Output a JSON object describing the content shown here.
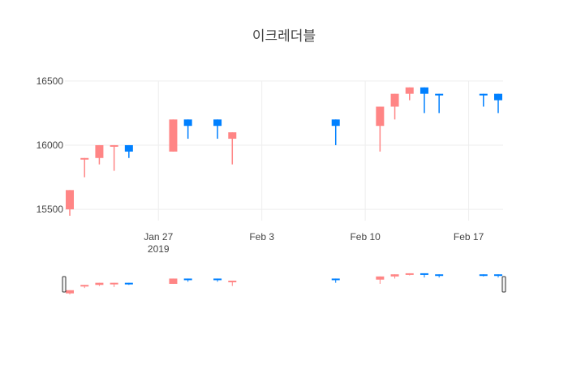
{
  "chart_data": {
    "type": "candlestick",
    "title": "이크레더블",
    "increasing_color": "#ff8585",
    "decreasing_color": "#0080ff",
    "y_ticks": [
      15500,
      16000,
      16500
    ],
    "y_tick_labels": [
      "15500",
      "16000",
      "16500"
    ],
    "x_ticks": [
      "2019-01-27",
      "2019-02-03",
      "2019-02-10",
      "2019-02-17"
    ],
    "x_tick_labels": [
      "Jan 27",
      "Feb 3",
      "Feb 10",
      "Feb 17"
    ],
    "x_tick_sublabel": "2019",
    "xlim": [
      "2019-01-21",
      "2019-02-19"
    ],
    "ylim": [
      15450,
      16600
    ],
    "rangeslider": true,
    "candles": [
      {
        "date": "2019-01-21",
        "open": 15500,
        "high": 15650,
        "low": 15450,
        "close": 15650,
        "direction": "increasing"
      },
      {
        "date": "2019-01-22",
        "open": 15900,
        "high": 15900,
        "low": 15750,
        "close": 15900,
        "direction": "increasing"
      },
      {
        "date": "2019-01-23",
        "open": 15900,
        "high": 16000,
        "low": 15850,
        "close": 16000,
        "direction": "increasing"
      },
      {
        "date": "2019-01-24",
        "open": 16000,
        "high": 16000,
        "low": 15800,
        "close": 16000,
        "direction": "increasing"
      },
      {
        "date": "2019-01-25",
        "open": 16000,
        "high": 16000,
        "low": 15900,
        "close": 15950,
        "direction": "decreasing"
      },
      {
        "date": "2019-01-28",
        "open": 15950,
        "high": 16200,
        "low": 15950,
        "close": 16200,
        "direction": "increasing"
      },
      {
        "date": "2019-01-29",
        "open": 16200,
        "high": 16200,
        "low": 16050,
        "close": 16150,
        "direction": "decreasing"
      },
      {
        "date": "2019-01-31",
        "open": 16200,
        "high": 16200,
        "low": 16050,
        "close": 16150,
        "direction": "decreasing"
      },
      {
        "date": "2019-02-01",
        "open": 16050,
        "high": 16100,
        "low": 15850,
        "close": 16100,
        "direction": "increasing"
      },
      {
        "date": "2019-02-08",
        "open": 16200,
        "high": 16200,
        "low": 16000,
        "close": 16150,
        "direction": "decreasing"
      },
      {
        "date": "2019-02-11",
        "open": 16150,
        "high": 16300,
        "low": 15950,
        "close": 16300,
        "direction": "increasing"
      },
      {
        "date": "2019-02-12",
        "open": 16300,
        "high": 16400,
        "low": 16200,
        "close": 16400,
        "direction": "increasing"
      },
      {
        "date": "2019-02-13",
        "open": 16400,
        "high": 16450,
        "low": 16350,
        "close": 16450,
        "direction": "increasing"
      },
      {
        "date": "2019-02-14",
        "open": 16450,
        "high": 16450,
        "low": 16250,
        "close": 16400,
        "direction": "decreasing"
      },
      {
        "date": "2019-02-15",
        "open": 16400,
        "high": 16400,
        "low": 16250,
        "close": 16390,
        "direction": "decreasing"
      },
      {
        "date": "2019-02-18",
        "open": 16400,
        "high": 16400,
        "low": 16300,
        "close": 16390,
        "direction": "decreasing"
      },
      {
        "date": "2019-02-19",
        "open": 16400,
        "high": 16400,
        "low": 16250,
        "close": 16350,
        "direction": "decreasing"
      }
    ]
  }
}
